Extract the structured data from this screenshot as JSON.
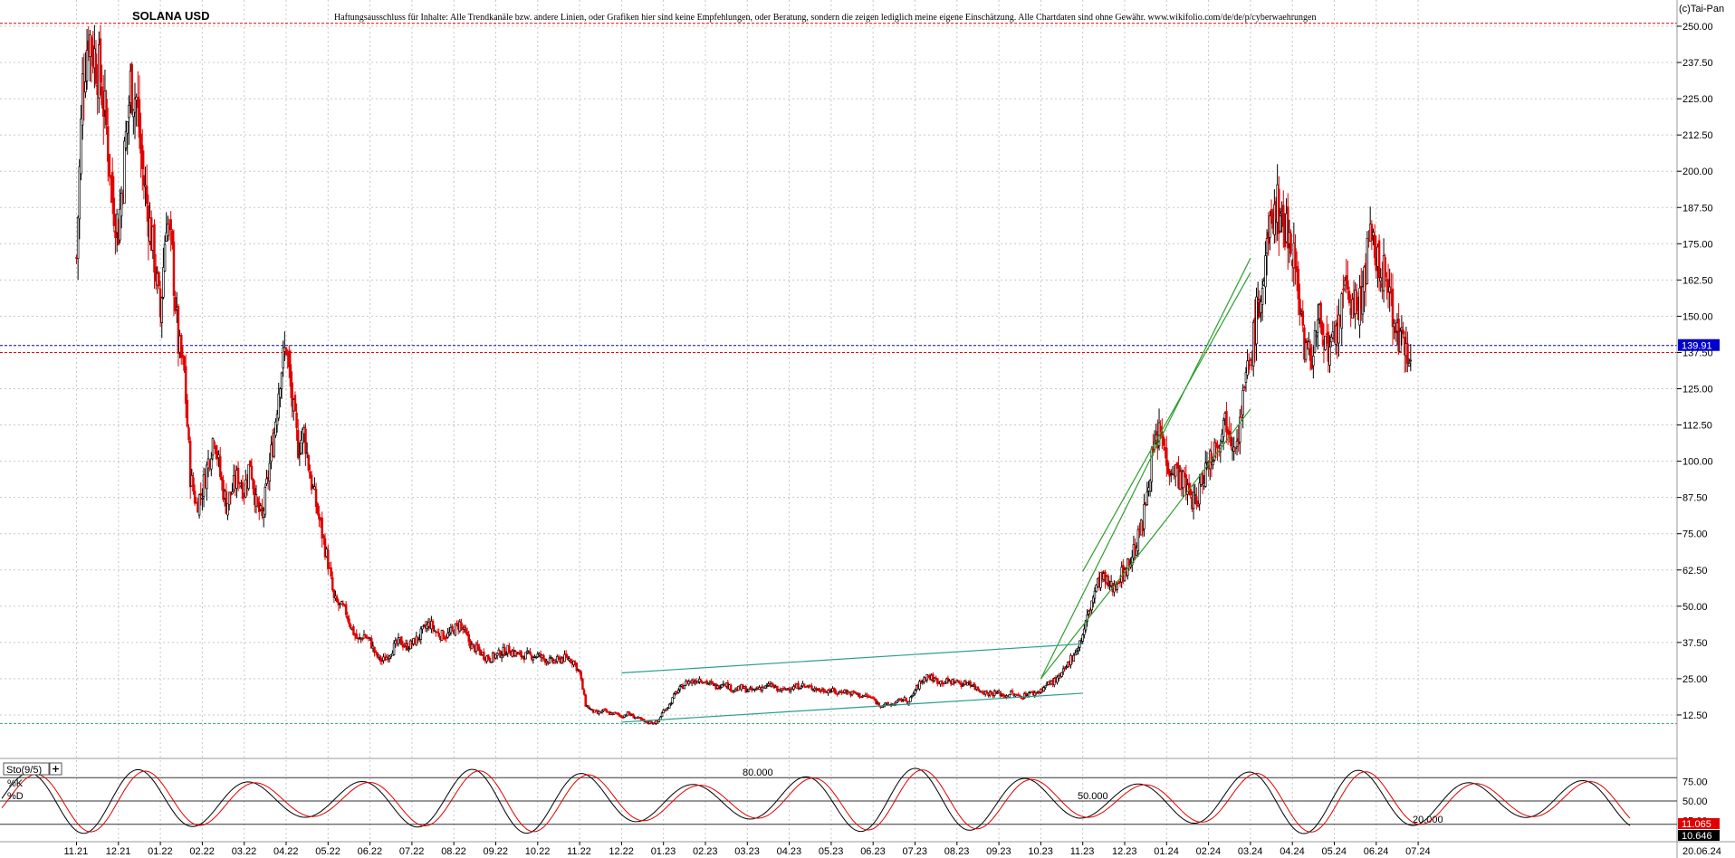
{
  "header": {
    "symbol": "SOLANA USD",
    "disclaimer": "Haftungsausschluss für Inhalte: Alle Trendkanäle bzw. andere Linien, oder Grafiken hier sind keine Empfehlungen, oder Beratung, sondern die zeigen lediglich meine eigene Einschätzung. Alle Chartdaten sind ohne Gewähr. www.wikifolio.com/de/de/p/cyberwaehrungen",
    "copyright": "(c)Tai-Pan"
  },
  "colors": {
    "up": "#000000",
    "down": "#e00000",
    "grid": "#c8c8c8",
    "channel": "#2e9e2e",
    "range": "#2a9d8f",
    "current_price_line": "#0000cc",
    "resistance_line": "#e00000",
    "support_line": "#3cb371",
    "k_line": "#000000",
    "d_line": "#e00000"
  },
  "chart_data": [
    {
      "type": "candlestick",
      "title": "SOLANA USD",
      "ylim": [
        0,
        256
      ],
      "y_ticks": [
        "250.00",
        "237.50",
        "225.00",
        "212.50",
        "200.00",
        "187.50",
        "175.00",
        "162.50",
        "150.00",
        "137.50",
        "125.00",
        "112.50",
        "100.00",
        "87.50",
        "75.00",
        "62.50",
        "50.00",
        "37.50",
        "25.00",
        "12.50"
      ],
      "x_ticks": [
        "11.21",
        "12.21",
        "01.22",
        "02.22",
        "03.22",
        "04.22",
        "05.22",
        "06.22",
        "07.22",
        "08.22",
        "09.22",
        "10.22",
        "11.22",
        "12.22",
        "01.23",
        "02.23",
        "03.23",
        "04.23",
        "05.23",
        "06.23",
        "07.23",
        "08.23",
        "09.23",
        "10.23",
        "11.23",
        "12.23",
        "01.24",
        "02.24",
        "03.24",
        "04.24",
        "05.24",
        "06.24",
        "07.24"
      ],
      "current_price": 139.91,
      "current_price_label": "139.91",
      "last_date": "20.06.24",
      "horizontal_lines": [
        {
          "value": 251,
          "style": "dotted",
          "color": "resistance_line"
        },
        {
          "value": 139.91,
          "style": "dotted",
          "color": "current_price_line"
        },
        {
          "value": 137.5,
          "style": "dotted",
          "color": "resistance_line"
        },
        {
          "value": 9.5,
          "style": "dotted",
          "color": "support_line"
        }
      ],
      "anchors": [
        [
          "11.21",
          170,
          230,
          248,
          240,
          232,
          215,
          190
        ],
        [
          "12.21",
          180,
          205,
          230,
          225,
          200,
          185,
          170
        ],
        [
          "01.22",
          150,
          185,
          170,
          140,
          130,
          95,
          85
        ],
        [
          "02.22",
          90,
          100,
          110,
          95,
          85,
          90,
          95
        ],
        [
          "03.22",
          90,
          100,
          85,
          80,
          95,
          110,
          130
        ],
        [
          "04.22",
          140,
          120,
          105,
          110,
          95,
          85,
          75
        ],
        [
          "05.22",
          65,
          52,
          50,
          48,
          42,
          38,
          40
        ],
        [
          "06.22",
          38,
          33,
          31,
          33,
          36,
          38,
          36
        ],
        [
          "07.22",
          37,
          39,
          42,
          44,
          41,
          40,
          40
        ],
        [
          "08.22",
          42,
          44,
          40,
          36,
          35,
          33,
          32
        ],
        [
          "09.22",
          33,
          34,
          35,
          34,
          33,
          33,
          33
        ],
        [
          "10.22",
          33,
          32,
          31,
          31,
          32,
          32,
          31
        ],
        [
          "11.22",
          27,
          16,
          14,
          13,
          14,
          13,
          13
        ],
        [
          "12.22",
          12,
          13,
          12,
          11,
          10,
          10,
          10
        ],
        [
          "01.23",
          14,
          16,
          20,
          22,
          24,
          24,
          25
        ],
        [
          "02.23",
          24,
          23,
          22,
          24,
          22,
          21,
          22
        ],
        [
          "03.23",
          21,
          21,
          22,
          22,
          23,
          21,
          21
        ],
        [
          "04.23",
          22,
          22,
          23,
          22,
          22,
          21,
          21
        ],
        [
          "05.23",
          21,
          20,
          21,
          20,
          20,
          19,
          19
        ],
        [
          "06.23",
          18,
          16,
          16,
          16,
          17,
          18,
          17
        ],
        [
          "07.23",
          21,
          24,
          26,
          25,
          24,
          24,
          24
        ],
        [
          "08.23",
          24,
          23,
          24,
          22,
          21,
          20,
          20
        ],
        [
          "09.23",
          20,
          19,
          20,
          19,
          19,
          20,
          20
        ],
        [
          "10.23",
          21,
          23,
          24,
          25,
          28,
          32,
          35
        ],
        [
          "11.23",
          40,
          48,
          55,
          60,
          58,
          56,
          60
        ],
        [
          "12.23",
          62,
          66,
          72,
          78,
          95,
          105,
          110
        ],
        [
          "01.24",
          100,
          98,
          95,
          92,
          88,
          85,
          95
        ],
        [
          "02.24",
          100,
          105,
          110,
          115,
          108,
          110,
          125
        ],
        [
          "03.24",
          135,
          150,
          160,
          175,
          190,
          185,
          180
        ],
        [
          "04.24",
          175,
          160,
          140,
          135,
          145,
          150,
          135
        ],
        [
          "05.24",
          140,
          150,
          160,
          155,
          150,
          165,
          175
        ],
        [
          "06.24",
          170,
          165,
          160,
          150,
          140,
          139.91,
          139.91
        ]
      ],
      "annotations": [
        {
          "type": "trendline",
          "color": "channel",
          "from": [
            "10.23",
            25
          ],
          "to": [
            "03.24",
            170
          ]
        },
        {
          "type": "trendline",
          "color": "channel",
          "from": [
            "10.23",
            25
          ],
          "to": [
            "01.24",
            80
          ]
        },
        {
          "type": "trendline",
          "color": "channel",
          "from": [
            "11.23",
            62
          ],
          "to": [
            "03.24",
            165
          ]
        },
        {
          "type": "trendline",
          "color": "channel",
          "from": [
            "01.24",
            80
          ],
          "to": [
            "03.24",
            118
          ]
        },
        {
          "type": "trendline",
          "color": "range",
          "from": [
            "12.22",
            27
          ],
          "to": [
            "11.23",
            37
          ]
        },
        {
          "type": "trendline",
          "color": "range",
          "from": [
            "12.22",
            10
          ],
          "to": [
            "11.23",
            20
          ]
        }
      ]
    },
    {
      "type": "line",
      "title": "Sto(9/5)",
      "series": [
        {
          "name": "%K"
        },
        {
          "name": "%D"
        }
      ],
      "ylim": [
        0,
        100
      ],
      "levels": [
        {
          "value": 80,
          "label": "80.000"
        },
        {
          "value": 50,
          "label": "50.000"
        },
        {
          "value": 20,
          "label": "20.000"
        }
      ],
      "y_ticks": [
        "75.00",
        "50.00",
        "25.00"
      ],
      "k_value_label": "11.065",
      "d_value_label": "10.646"
    }
  ]
}
